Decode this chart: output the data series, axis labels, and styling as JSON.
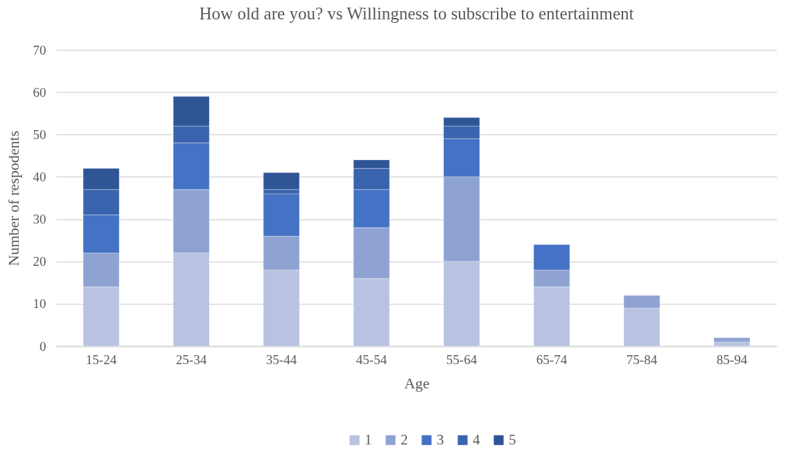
{
  "chart_data": {
    "type": "bar",
    "title": "How old are you? vs Willingness to subscribe to entertainment",
    "xlabel": "Age",
    "ylabel": "Number of respodents",
    "categories": [
      "15-24",
      "25-34",
      "35-44",
      "45-54",
      "55-64",
      "65-74",
      "75-84",
      "85-94"
    ],
    "stacked": true,
    "series": [
      {
        "name": "1",
        "color": "#b9c3e1",
        "values": [
          14,
          22,
          18,
          16,
          20,
          14,
          9,
          1
        ]
      },
      {
        "name": "2",
        "color": "#8fa3d3",
        "values": [
          8,
          15,
          8,
          12,
          20,
          4,
          3,
          1
        ]
      },
      {
        "name": "3",
        "color": "#4472c4",
        "values": [
          9,
          11,
          10,
          9,
          9,
          6,
          null,
          null
        ]
      },
      {
        "name": "4",
        "color": "#3a64ad",
        "values": [
          6,
          4,
          1,
          5,
          3,
          null,
          null,
          null
        ]
      },
      {
        "name": "5",
        "color": "#2f5597",
        "values": [
          5,
          7,
          4,
          2,
          2,
          null,
          null,
          null
        ]
      }
    ],
    "ylim": [
      0,
      70
    ],
    "yticks": [
      0,
      10,
      20,
      30,
      40,
      50,
      60,
      70
    ],
    "grid": "y",
    "legend": "bottom"
  }
}
